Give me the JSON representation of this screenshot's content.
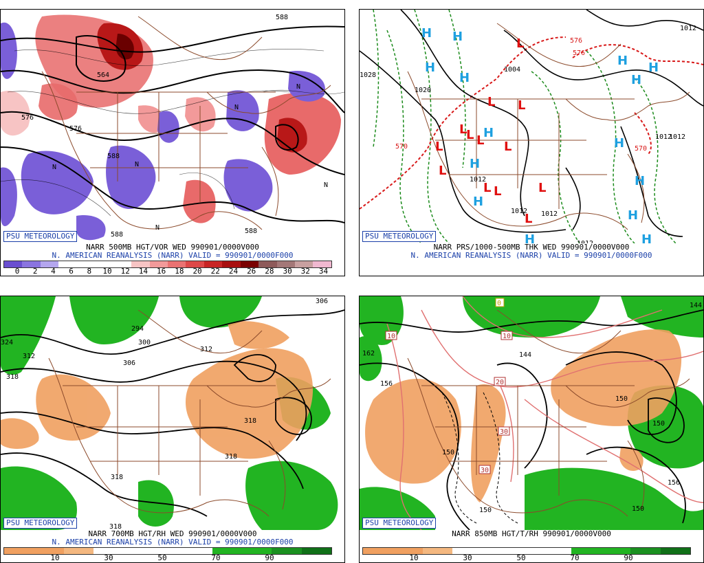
{
  "panels": {
    "p1": {
      "badge": "PSU METEOROLOGY",
      "caption1": "NARR 500MB HGT/VOR WED 990901/0000V000",
      "caption2": "N. AMERICAN REANALYSIS (NARR) VALID = 990901/0000F000",
      "ticks": [
        "0",
        "2",
        "4",
        "6",
        "8",
        "10",
        "12",
        "14",
        "16",
        "18",
        "20",
        "22",
        "24",
        "26",
        "28",
        "30",
        "32",
        "34"
      ],
      "colorbar": [
        "#6a4fd0",
        "#8a74e0",
        "#b4a6ee",
        "#ffffff",
        "#ffffff",
        "#ffffff",
        "#ffffff",
        "#f7c4c4",
        "#f29a9a",
        "#ea7272",
        "#de4848",
        "#c82424",
        "#a80e0e",
        "#7a0000",
        "#8e5a5a",
        "#a47878",
        "#c8a0a0",
        "#f0b8d0"
      ],
      "labels": [
        "588",
        "576",
        "564",
        "576",
        "588",
        "588",
        "588",
        "N",
        "N",
        "N",
        "N",
        "N",
        "N"
      ]
    },
    "p2": {
      "badge": "PSU METEOROLOGY",
      "caption1": "NARR PRS/1000-500MB THK WED 990901/0000V000",
      "caption2": "N. AMERICAN REANALYSIS (NARR) VALID = 990901/0000F000",
      "labels": [
        "1012",
        "1020",
        "1012",
        "1004",
        "1012",
        "1012",
        "1012",
        "1012",
        "1012",
        "570",
        "570",
        "576",
        "576",
        "1028"
      ],
      "highs": 16,
      "lows": 13,
      "high_letter": "H",
      "low_letter": "L"
    },
    "p3": {
      "badge": "PSU METEOROLOGY",
      "caption1": "NARR 700MB HGT/RH WED 990901/0000V000",
      "caption2": "N. AMERICAN REANALYSIS (NARR) VALID = 990901/0000F000",
      "ticks": [
        "10",
        "30",
        "50",
        "70",
        "90"
      ],
      "labels": [
        "294",
        "300",
        "306",
        "312",
        "318",
        "318",
        "318",
        "318",
        "318",
        "306",
        "312",
        "324"
      ]
    },
    "p4": {
      "badge": "PSU METEOROLOGY",
      "caption1": "NARR 850MB HGT/T/RH 990901/0000V000",
      "ticks": [
        "10",
        "30",
        "50",
        "70",
        "90"
      ],
      "labels": [
        "156",
        "150",
        "150",
        "150",
        "156",
        "150",
        "150",
        "144",
        "144",
        "162"
      ],
      "temp_labels": [
        "10",
        "10",
        "20",
        "30",
        "30",
        "0"
      ]
    }
  },
  "colors": {
    "badge_blue": "#1a3fa8",
    "map_brown": "#8b4a2b",
    "high_blue": "#1ea0e0",
    "low_red": "#e01010",
    "dry_orange": "#f0a060",
    "moist_green": "#20b020"
  }
}
